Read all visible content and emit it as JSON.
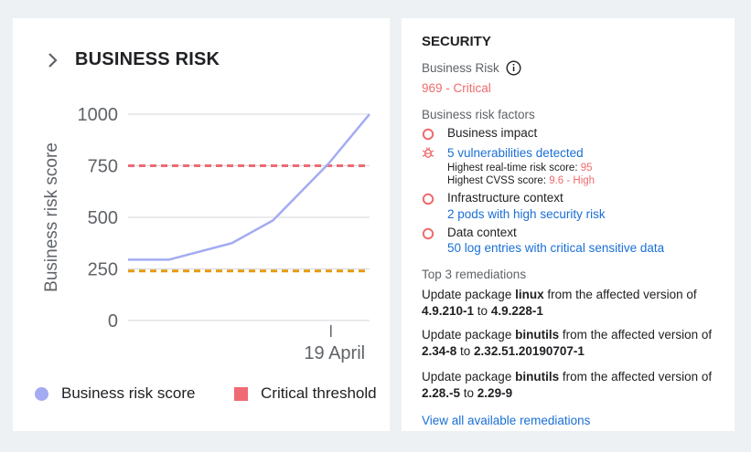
{
  "business_risk_card": {
    "title": "BUSINESS RISK",
    "legend": [
      {
        "label": "Business risk score",
        "color": "#a4abf2"
      },
      {
        "label": "Critical threshold",
        "color": "#f06a73"
      }
    ]
  },
  "chart_data": {
    "type": "line",
    "ylabel": "Business risk score",
    "yticks": [
      0,
      250,
      500,
      750,
      1000
    ],
    "ylim": [
      0,
      1000
    ],
    "xtick": {
      "label": "19 April",
      "position": 0.84
    },
    "x": [
      0,
      0.17,
      0.43,
      0.6,
      0.83,
      1.0
    ],
    "series": [
      {
        "name": "Business risk score",
        "color": "#a4abf2",
        "y": [
          295,
          295,
          375,
          485,
          760,
          1000
        ]
      }
    ],
    "reference_lines": [
      {
        "name": "Critical threshold",
        "value": 750,
        "color": "#f06a73",
        "style": "dashed"
      },
      {
        "value": 240,
        "color": "#e59a0f",
        "style": "dashed"
      }
    ],
    "grid": true
  },
  "security_panel": {
    "title": "SECURITY",
    "risk_label": "Business Risk",
    "risk_info_icon": "info-icon",
    "risk_score": "969",
    "risk_separator": " - ",
    "risk_level": "Critical",
    "factors_heading": "Business risk factors",
    "factors": {
      "impact_label": "Business impact",
      "vulns_link": "5 vulnerabilities detected",
      "realtime_label": "Highest real-time risk score: ",
      "realtime_value": "95",
      "cvss_label": "Highest CVSS score: ",
      "cvss_value": "9.6 - High",
      "infra_label": "Infrastructure context",
      "infra_link": "2 pods with high security risk",
      "data_label": "Data context",
      "data_link": "50 log entries with critical sensitive data"
    },
    "remediations_heading": "Top 3 remediations",
    "remediations": [
      {
        "prefix": "Update package ",
        "package": "linux",
        "middle": " from the affected version of ",
        "from": "4.9.210-1",
        "to_word": " to ",
        "to": "4.9.228-1"
      },
      {
        "prefix": "Update package ",
        "package": "binutils",
        "middle": " from the affected version of ",
        "from": "2.34-8",
        "to_word": " to ",
        "to": "2.32.51.20190707-1"
      },
      {
        "prefix": "Update package ",
        "package": "binutils",
        "middle": " from the affected version of ",
        "from": "2.28.-5",
        "to_word": " to ",
        "to": "2.29-9"
      }
    ],
    "view_all_link": "View all available remediations"
  },
  "colors": {
    "critical": "#ef6b6b",
    "link": "#1a6fd6",
    "threshold_low": "#e59a0f"
  }
}
